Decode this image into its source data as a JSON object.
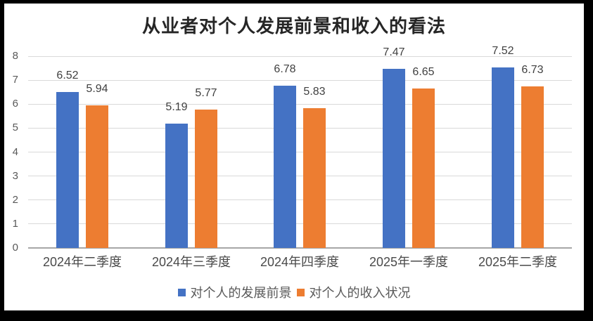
{
  "title": "从业者对个人发展前景和收入的看法",
  "chart_data": {
    "type": "bar",
    "categories": [
      "2024年二季度",
      "2024年三季度",
      "2024年四季度",
      "2025年一季度",
      "2025年二季度"
    ],
    "series": [
      {
        "name": "对个人的发展前景",
        "color": "#4472C4",
        "values": [
          6.52,
          5.19,
          6.78,
          7.47,
          7.52
        ]
      },
      {
        "name": "对个人的收入状况",
        "color": "#ED7D31",
        "values": [
          5.94,
          5.77,
          5.83,
          6.65,
          6.73
        ]
      }
    ],
    "ylim": [
      0,
      8
    ],
    "yticks": [
      0,
      1,
      2,
      3,
      4,
      5,
      6,
      7,
      8
    ],
    "grid": true,
    "legend_position": "bottom",
    "colors": {
      "gridline": "#d9d9d9",
      "axis_line": "#a6a6a6",
      "tick_label": "#595959",
      "data_label": "#404040"
    }
  }
}
